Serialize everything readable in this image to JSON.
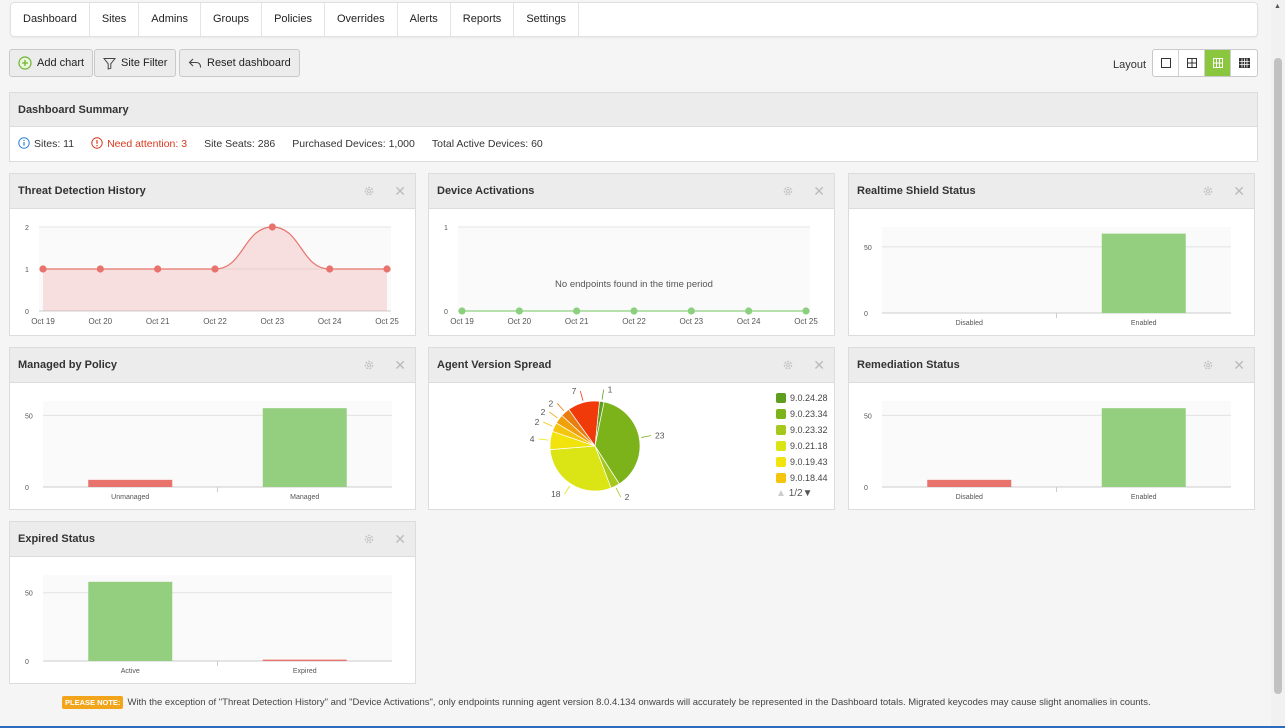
{
  "nav": {
    "tabs": [
      {
        "name": "tab-dashboard",
        "label": "Dashboard"
      },
      {
        "name": "tab-sites",
        "label": "Sites"
      },
      {
        "name": "tab-admins",
        "label": "Admins"
      },
      {
        "name": "tab-groups",
        "label": "Groups"
      },
      {
        "name": "tab-policies",
        "label": "Policies"
      },
      {
        "name": "tab-overrides",
        "label": "Overrides"
      },
      {
        "name": "tab-alerts",
        "label": "Alerts"
      },
      {
        "name": "tab-reports",
        "label": "Reports"
      },
      {
        "name": "tab-settings",
        "label": "Settings"
      }
    ]
  },
  "toolbar": {
    "add_chart": "Add chart",
    "site_filter": "Site Filter",
    "reset_dashboard": "Reset dashboard",
    "layout_label": "Layout",
    "layout_options": [
      "single",
      "two-column",
      "three-column",
      "four-column"
    ],
    "layout_selected": "three-column",
    "accent": "#8bc63f"
  },
  "summary": {
    "title": "Dashboard Summary",
    "sites": "Sites: 11",
    "need_attention": "Need attention: 3",
    "site_seats": "Site Seats: 286",
    "purchased_devices": "Purchased Devices: 1,000",
    "total_active_devices": "Total Active Devices: 60"
  },
  "panels": {
    "threat": {
      "title": "Threat Detection History"
    },
    "activations": {
      "title": "Device Activations",
      "empty_message": "No endpoints found in the time period"
    },
    "shield": {
      "title": "Realtime Shield Status"
    },
    "policy": {
      "title": "Managed by Policy"
    },
    "agent": {
      "title": "Agent Version Spread",
      "pager": "1/2"
    },
    "remediation": {
      "title": "Remediation Status"
    },
    "expired": {
      "title": "Expired Status"
    }
  },
  "chart_data": [
    {
      "id": "threat",
      "type": "area",
      "title": "Threat Detection History",
      "x": [
        "Oct 19",
        "Oct 20",
        "Oct 21",
        "Oct 22",
        "Oct 23",
        "Oct 24",
        "Oct 25"
      ],
      "values": [
        1,
        1,
        1,
        1,
        2,
        1,
        1
      ],
      "ylim": [
        0,
        2
      ],
      "yticks": [
        "0",
        "1",
        "2"
      ],
      "color": "#e8736c"
    },
    {
      "id": "activations",
      "type": "line",
      "title": "Device Activations",
      "x": [
        "Oct 19",
        "Oct 20",
        "Oct 21",
        "Oct 22",
        "Oct 23",
        "Oct 24",
        "Oct 25"
      ],
      "values": [
        0,
        0,
        0,
        0,
        0,
        0,
        0
      ],
      "ylim": [
        0,
        1
      ],
      "yticks": [
        "0",
        "1"
      ],
      "color": "#8ccf7e"
    },
    {
      "id": "shield",
      "type": "bar",
      "title": "Realtime Shield Status",
      "categories": [
        "Disabled",
        "Enabled"
      ],
      "values": [
        0,
        60
      ],
      "ylim": [
        0,
        65
      ],
      "yticks": [
        "0",
        "50"
      ],
      "colors": [
        "#e8736c",
        "#93cf7f"
      ]
    },
    {
      "id": "policy",
      "type": "bar",
      "title": "Managed by Policy",
      "categories": [
        "Unmanaged",
        "Managed"
      ],
      "values": [
        5,
        55
      ],
      "ylim": [
        0,
        60
      ],
      "yticks": [
        "0",
        "50"
      ],
      "colors": [
        "#e8736c",
        "#93cf7f"
      ]
    },
    {
      "id": "agent",
      "type": "pie",
      "title": "Agent Version Spread",
      "slices": [
        {
          "label": "9.0.24.28",
          "value": 1,
          "color": "#5e9e1e"
        },
        {
          "label": "9.0.23.34",
          "value": 23,
          "color": "#7cb31a"
        },
        {
          "label": "9.0.23.32",
          "value": 2,
          "color": "#a6c81c"
        },
        {
          "label": "9.0.21.18",
          "value": 18,
          "color": "#dbe414"
        },
        {
          "label": "9.0.19.43",
          "value": 4,
          "color": "#f2e30c"
        },
        {
          "label": "9.0.18.44",
          "value": 2,
          "color": "#f5c40c"
        },
        {
          "label": "",
          "value": 2,
          "color": "#f0a00a"
        },
        {
          "label": "",
          "value": 2,
          "color": "#ea7d10"
        },
        {
          "label": "",
          "value": 7,
          "color": "#f13a0a"
        }
      ]
    },
    {
      "id": "remediation",
      "type": "bar",
      "title": "Remediation Status",
      "categories": [
        "Disabled",
        "Enabled"
      ],
      "values": [
        5,
        55
      ],
      "ylim": [
        0,
        60
      ],
      "yticks": [
        "0",
        "50"
      ],
      "colors": [
        "#e8736c",
        "#93cf7f"
      ]
    },
    {
      "id": "expired",
      "type": "bar",
      "title": "Expired Status",
      "categories": [
        "Active",
        "Expired"
      ],
      "values": [
        58,
        1
      ],
      "ylim": [
        0,
        63
      ],
      "yticks": [
        "0",
        "50"
      ],
      "colors": [
        "#93cf7f",
        "#e8736c"
      ]
    }
  ],
  "note": {
    "badge": "PLEASE NOTE:",
    "text": "With the exception of \"Threat Detection History\" and \"Device Activations\", only endpoints running agent version 8.0.4.134 onwards will accurately be represented in the Dashboard totals. Migrated keycodes may cause slight anomalies in counts."
  }
}
